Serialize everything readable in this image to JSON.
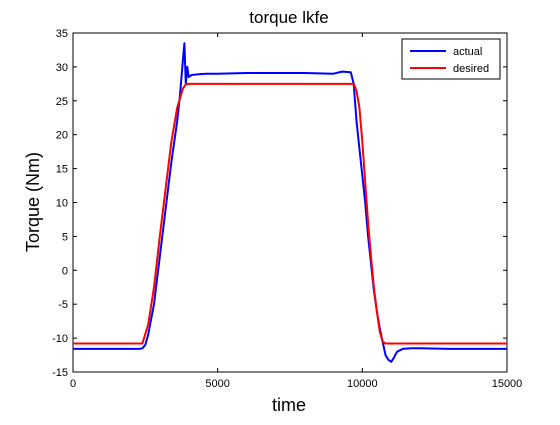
{
  "chart_data": {
    "type": "line",
    "title": "torque lkfe",
    "xlabel": "time",
    "ylabel": "Torque (Nm)",
    "xlim": [
      0,
      15000
    ],
    "ylim": [
      -15,
      35
    ],
    "xticks": [
      0,
      5000,
      10000,
      15000
    ],
    "xtick_labels": [
      "0",
      "5000",
      "10000",
      "15000"
    ],
    "yticks": [
      -15,
      -10,
      -5,
      0,
      5,
      10,
      15,
      20,
      25,
      30,
      35
    ],
    "ytick_labels": [
      "-15",
      "-10",
      "-5",
      "0",
      "5",
      "10",
      "15",
      "20",
      "25",
      "30",
      "35"
    ],
    "grid": false,
    "legend_position": "top-right",
    "series": [
      {
        "name": "actual",
        "color": "#0000ff",
        "x": [
          0,
          2300,
          2400,
          2500,
          2600,
          2800,
          3000,
          3200,
          3400,
          3600,
          3700,
          3800,
          3850,
          3900,
          3950,
          4000,
          4100,
          4300,
          4600,
          5000,
          6000,
          7000,
          8000,
          9000,
          9300,
          9600,
          9700,
          9800,
          9900,
          10000,
          10100,
          10200,
          10300,
          10400,
          10500,
          10600,
          10700,
          10800,
          10900,
          11000,
          11100,
          11200,
          11400,
          11700,
          12000,
          13000,
          14000,
          15000
        ],
        "y": [
          -11.6,
          -11.6,
          -11.5,
          -11.0,
          -9.5,
          -5.0,
          2.0,
          9.0,
          16.0,
          22.0,
          26.0,
          31.0,
          33.5,
          27.5,
          30.0,
          28.5,
          28.8,
          28.9,
          29.0,
          29.0,
          29.1,
          29.1,
          29.1,
          29.0,
          29.3,
          29.2,
          27.5,
          22.0,
          18.0,
          14.0,
          10.0,
          5.0,
          1.0,
          -3.0,
          -6.0,
          -8.5,
          -10.5,
          -12.5,
          -13.2,
          -13.5,
          -12.8,
          -12.0,
          -11.6,
          -11.5,
          -11.5,
          -11.6,
          -11.6,
          -11.6
        ]
      },
      {
        "name": "desired",
        "color": "#ff0000",
        "x": [
          0,
          2400,
          2600,
          2800,
          3000,
          3200,
          3400,
          3600,
          3800,
          3900,
          4000,
          5000,
          6000,
          7000,
          8000,
          9000,
          9700,
          9800,
          9900,
          10000,
          10100,
          10200,
          10300,
          10400,
          10500,
          10600,
          10700,
          10800,
          10900,
          11000,
          12000,
          13000,
          14000,
          15000
        ],
        "y": [
          -10.8,
          -10.8,
          -8.0,
          -2.5,
          5.0,
          12.0,
          19.0,
          24.0,
          26.8,
          27.4,
          27.5,
          27.5,
          27.5,
          27.5,
          27.5,
          27.5,
          27.5,
          26.5,
          24.0,
          19.0,
          13.0,
          7.0,
          2.0,
          -2.5,
          -6.0,
          -9.0,
          -10.5,
          -10.8,
          -10.8,
          -10.8,
          -10.8,
          -10.8,
          -10.8,
          -10.8
        ]
      }
    ]
  }
}
